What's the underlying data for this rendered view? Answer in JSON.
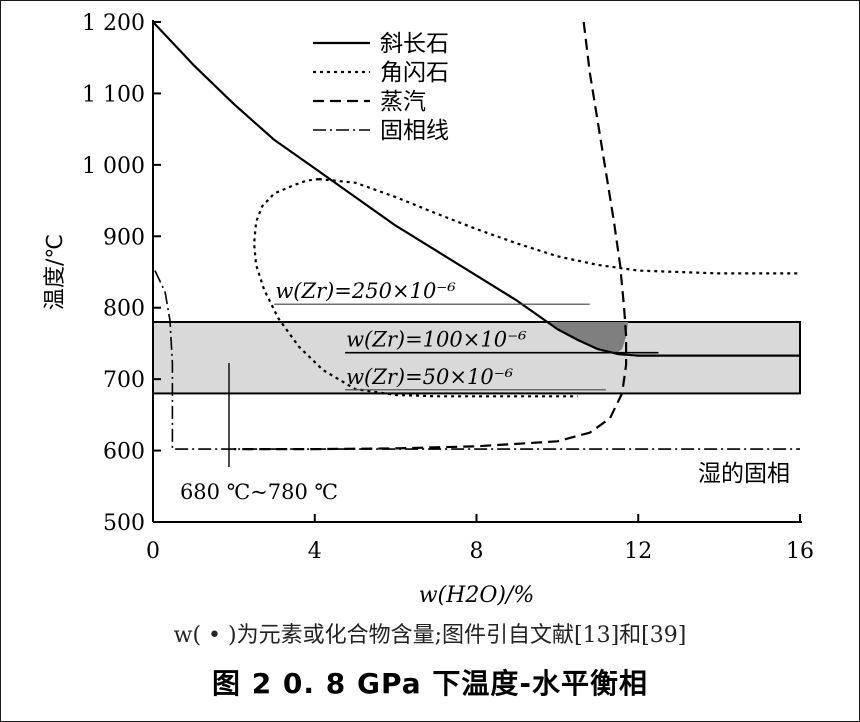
{
  "chart_data": {
    "type": "line",
    "xlabel": "w(H2O)/%",
    "ylabel": "温度/℃",
    "xlim": [
      0,
      16
    ],
    "ylim": [
      500,
      1200
    ],
    "x_ticks": [
      0,
      4,
      8,
      12,
      16
    ],
    "y_ticks": [
      500,
      600,
      700,
      800,
      900,
      1000,
      1100,
      1200
    ],
    "y_tick_labels": [
      "500",
      "600",
      "700",
      "800",
      "900",
      "1 000",
      "1 100",
      "1 200"
    ],
    "grid": false,
    "legend_position": "top-center",
    "series": [
      {
        "name": "斜长石",
        "style": "solid",
        "points": [
          [
            0,
            1200
          ],
          [
            0.5,
            1170
          ],
          [
            1,
            1140
          ],
          [
            2,
            1085
          ],
          [
            3,
            1035
          ],
          [
            4,
            995
          ],
          [
            5,
            955
          ],
          [
            6,
            915
          ],
          [
            7,
            880
          ],
          [
            8,
            845
          ],
          [
            9,
            810
          ],
          [
            9.5,
            790
          ],
          [
            10,
            770
          ],
          [
            10.5,
            755
          ],
          [
            11,
            742
          ],
          [
            11.5,
            735
          ],
          [
            12,
            733
          ],
          [
            13,
            733
          ],
          [
            16,
            733
          ]
        ]
      },
      {
        "name": "角闪石",
        "style": "dotted",
        "points": [
          [
            4.1,
            980
          ],
          [
            3.8,
            978
          ],
          [
            3.5,
            972
          ],
          [
            3,
            960
          ],
          [
            2.7,
            942
          ],
          [
            2.55,
            920
          ],
          [
            2.5,
            890
          ],
          [
            2.55,
            860
          ],
          [
            2.75,
            825
          ],
          [
            3.1,
            785
          ],
          [
            3.6,
            746
          ],
          [
            4.2,
            713
          ],
          [
            5,
            686
          ],
          [
            6,
            678
          ],
          [
            7,
            676
          ],
          [
            8,
            676
          ],
          [
            9,
            676
          ],
          [
            10.5,
            676
          ],
          [
            4.1,
            980
          ],
          [
            5,
            975
          ],
          [
            6,
            955
          ],
          [
            7,
            932
          ],
          [
            8,
            910
          ],
          [
            9,
            890
          ],
          [
            10,
            872
          ],
          [
            11,
            860
          ],
          [
            12,
            852
          ],
          [
            14,
            848
          ],
          [
            16,
            848
          ]
        ]
      },
      {
        "name": "蒸汽",
        "style": "dashed",
        "points": [
          [
            10.65,
            1200
          ],
          [
            10.8,
            1130
          ],
          [
            11,
            1060
          ],
          [
            11.2,
            990
          ],
          [
            11.4,
            920
          ],
          [
            11.55,
            860
          ],
          [
            11.65,
            800
          ],
          [
            11.7,
            760
          ],
          [
            11.7,
            720
          ],
          [
            11.6,
            680
          ],
          [
            11.3,
            645
          ],
          [
            10.8,
            625
          ],
          [
            10,
            613
          ],
          [
            8,
            606
          ],
          [
            6,
            603
          ],
          [
            4,
            602
          ],
          [
            2,
            602
          ]
        ]
      },
      {
        "name": "固相线",
        "style": "dash-dot",
        "points": [
          [
            0.05,
            852
          ],
          [
            0.3,
            822
          ],
          [
            0.42,
            782
          ],
          [
            0.48,
            722
          ],
          [
            0.48,
            602
          ],
          [
            16,
            602
          ]
        ]
      }
    ],
    "band": {
      "y_range": [
        680,
        780
      ]
    },
    "zr_lines": [
      {
        "label": "w(Zr)=250×10⁻⁶",
        "x_range": [
          3,
          10.8
        ],
        "y": 805
      },
      {
        "label": "w(Zr)=100×10⁻⁶",
        "x_range": [
          4.75,
          12.5
        ],
        "y": 737
      },
      {
        "label": "w(Zr)=50×10⁻⁶",
        "x_range": [
          4.75,
          11.2
        ],
        "y": 685
      }
    ],
    "band_label": "680 ℃~780 ℃",
    "annotation_wet_solidus": "湿的固相"
  },
  "note": "w( • )为元素或化合物含量;图件引自文献[13]和[39]",
  "caption": "图 2     0. 8 GPa 下温度-水平衡相"
}
